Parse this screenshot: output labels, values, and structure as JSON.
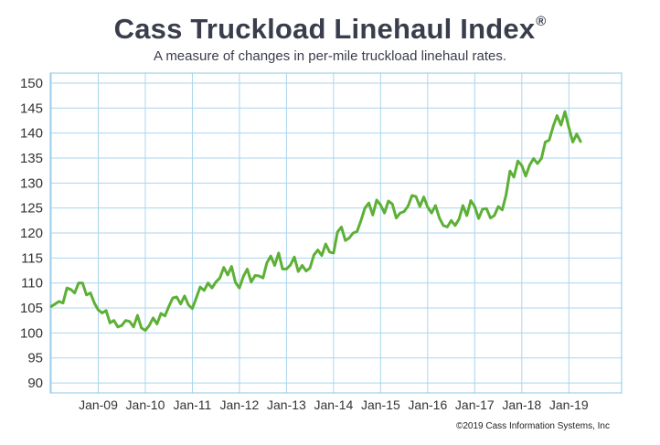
{
  "chart_data": {
    "type": "line",
    "title": "Cass Truckload Linehaul Index",
    "title_mark": "®",
    "subtitle": "A measure of changes in per-mile truckload linehaul rates.",
    "ylim": [
      88,
      152
    ],
    "yticks": [
      150,
      145,
      140,
      135,
      130,
      125,
      120,
      115,
      110,
      105,
      100,
      95,
      90
    ],
    "xtick_labels": [
      "Jan-09",
      "Jan-10",
      "Jan-11",
      "Jan-12",
      "Jan-13",
      "Jan-14",
      "Jan-15",
      "Jan-16",
      "Jan-17",
      "Jan-18",
      "Jan-19"
    ],
    "line_color": "#5cb035",
    "grid": true,
    "grid_color": "#a9d5ee",
    "series": [
      {
        "x_start": "Jan-08",
        "frequency": "monthly",
        "values": [
          105.3,
          105.8,
          106.3,
          106.0,
          109.0,
          108.7,
          108.0,
          110.0,
          110.0,
          107.6,
          108.0,
          106.0,
          104.6,
          104.0,
          104.5,
          102.0,
          102.5,
          101.2,
          101.5,
          102.5,
          102.3,
          101.2,
          103.5,
          101.0,
          100.5,
          101.5,
          103.0,
          101.8,
          103.9,
          103.4,
          105.3,
          107.0,
          107.2,
          105.8,
          107.4,
          105.6,
          104.9,
          107.0,
          109.2,
          108.5,
          110.0,
          109.0,
          110.2,
          111.0,
          113.1,
          111.6,
          113.3,
          110.1,
          109.0,
          111.3,
          112.8,
          110.2,
          111.5,
          111.4,
          111.0,
          114.0,
          115.4,
          113.5,
          116.0,
          112.8,
          112.8,
          113.6,
          115.2,
          112.3,
          113.5,
          112.4,
          113.0,
          115.6,
          116.6,
          115.5,
          117.8,
          116.2,
          116.0,
          120.2,
          121.2,
          118.5,
          119.0,
          120.0,
          120.3,
          122.5,
          125.0,
          126.0,
          123.6,
          126.6,
          125.6,
          124.0,
          126.4,
          125.8,
          123.0,
          124.0,
          124.3,
          125.4,
          127.5,
          127.3,
          125.3,
          127.2,
          125.2,
          124.0,
          125.5,
          123.0,
          121.5,
          121.2,
          122.5,
          121.5,
          122.8,
          125.5,
          123.5,
          126.5,
          125.3,
          122.9,
          124.8,
          124.9,
          123.0,
          123.5,
          125.3,
          124.6,
          127.6,
          132.4,
          131.2,
          134.4,
          133.5,
          131.4,
          133.6,
          134.9,
          133.9,
          134.9,
          138.2,
          138.6,
          141.3,
          143.5,
          141.6,
          144.3,
          141.1,
          138.2,
          139.8,
          138.3
        ]
      }
    ],
    "copyright": "©2019 Cass Information Systems, Inc"
  }
}
